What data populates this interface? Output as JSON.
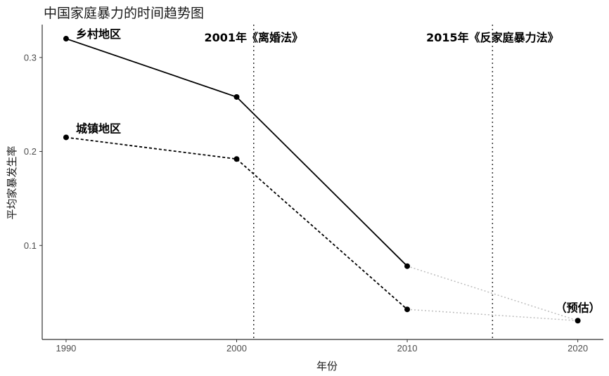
{
  "chart_data": {
    "type": "line",
    "title": "中国家庭暴力的时间趋势图",
    "xlabel": "年份",
    "ylabel": "平均家暴发生率",
    "xlim": [
      1988.6,
      2021.5
    ],
    "ylim": [
      0.0,
      0.335
    ],
    "x_ticks": [
      1990,
      2000,
      2010,
      2020
    ],
    "x_tick_labels": [
      "1990",
      "2000",
      "2010",
      "2020"
    ],
    "y_ticks": [
      0.1,
      0.2,
      0.3
    ],
    "y_tick_labels": [
      "0.1",
      "0.2",
      "0.3"
    ],
    "grid": false,
    "series": [
      {
        "name": "乡村地区",
        "style": "solid",
        "x": [
          1990,
          2000,
          2010
        ],
        "y": [
          0.32,
          0.258,
          0.078
        ],
        "projection": {
          "x": [
            2010,
            2020
          ],
          "y": [
            0.078,
            0.02
          ]
        }
      },
      {
        "name": "城镇地区",
        "style": "dashed",
        "x": [
          1990,
          2000,
          2010
        ],
        "y": [
          0.215,
          0.192,
          0.032
        ],
        "projection": {
          "x": [
            2010,
            2020
          ],
          "y": [
            0.032,
            0.02
          ]
        }
      }
    ],
    "projection_point": {
      "x": 2020,
      "y": 0.02,
      "label": "（预估）"
    },
    "vertical_lines": [
      {
        "x": 2001,
        "label": "2001年《离婚法》"
      },
      {
        "x": 2015,
        "label": "2015年《反家庭暴力法》"
      }
    ],
    "colors": {
      "series": "#000000",
      "projection": "#bdbdbd",
      "axis": "#333333"
    }
  }
}
